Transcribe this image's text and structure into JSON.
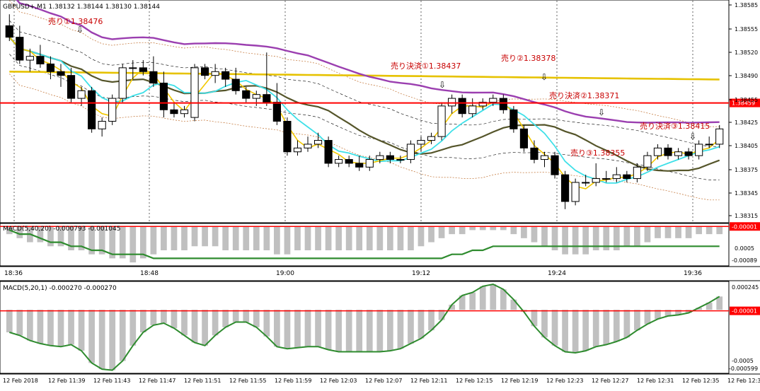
{
  "main_chart": {
    "header": "GBPUSD+,M1  1.38132 1.38144 1.38130 1.38144",
    "price_axis": [
      "1.38585",
      "1.38555",
      "1.38520",
      "1.38490",
      "1.38455",
      "1.38425",
      "1.38405",
      "1.38375",
      "1.38345",
      "1.38315"
    ],
    "current_price_label": "1.38459",
    "annotations": [
      {
        "text": "売り①1.38476",
        "color": "#c80000"
      },
      {
        "text": "売り決済①1.38437",
        "color": "#c80000"
      },
      {
        "text": "売り②1.38378",
        "color": "#c80000"
      },
      {
        "text": "売り決済②1.38371",
        "color": "#c80000"
      },
      {
        "text": "売り③1.38355",
        "color": "#c80000"
      },
      {
        "text": "売り決済③1.38415",
        "color": "#c80000"
      }
    ],
    "arrow_glyph": "⇩"
  },
  "macd1": {
    "header": "MACD(5,40,20) -0.000793 -0.001045",
    "axis": [
      "-0.00001",
      "0.0005",
      "-0.00089"
    ]
  },
  "time_axis_1": [
    "18:36",
    "18:48",
    "19:00",
    "19:12",
    "19:24",
    "19:36"
  ],
  "macd2": {
    "header": "MACD(5,20,1) -0.000270 -0.000270",
    "axis": [
      "0.000245",
      "-0.00001",
      "-0.0005",
      "-0.000599"
    ]
  },
  "time_axis_2": [
    "12 Feb 2018",
    "12 Feb 11:39",
    "12 Feb 11:43",
    "12 Feb 11:47",
    "12 Feb 11:51",
    "12 Feb 11:55",
    "12 Feb 11:59",
    "12 Feb 12:03",
    "12 Feb 12:07",
    "12 Feb 12:11",
    "12 Feb 12:15",
    "12 Feb 12:19",
    "12 Feb 12:23",
    "12 Feb 12:27",
    "12 Feb 12:31",
    "12 Feb 12:35",
    "12 Feb 12:3"
  ],
  "colors": {
    "bull": "#ffffff",
    "bear": "#000000",
    "ma_yellow": "#f2c800",
    "ma_purple": "#9b3fb0",
    "ma_olive": "#55552a",
    "ma_cyan": "#3fe0e8",
    "ma_gold": "#e6c200",
    "hline": "#ff0000",
    "macd_bar": "#c0c0c0",
    "macd_line": "#2e8b2e",
    "envelope": "#c07030"
  },
  "chart_data": [
    {
      "type": "candlestick",
      "title": "GBPUSD+,M1",
      "ohlc_approx": [
        [
          1.3856,
          1.38575,
          1.3854,
          1.38545
        ],
        [
          1.38545,
          1.3856,
          1.3851,
          1.38515
        ],
        [
          1.38515,
          1.3853,
          1.385,
          1.3852
        ],
        [
          1.3852,
          1.38535,
          1.38505,
          1.3851
        ],
        [
          1.3851,
          1.3852,
          1.3849,
          1.385
        ],
        [
          1.385,
          1.3851,
          1.3848,
          1.38495
        ],
        [
          1.38495,
          1.38505,
          1.3846,
          1.38465
        ],
        [
          1.38465,
          1.3848,
          1.38455,
          1.38475
        ],
        [
          1.38475,
          1.3848,
          1.3842,
          1.38425
        ],
        [
          1.38425,
          1.3844,
          1.38415,
          1.38435
        ],
        [
          1.38435,
          1.3847,
          1.3843,
          1.38465
        ],
        [
          1.38465,
          1.3851,
          1.3846,
          1.38505
        ],
        [
          1.38505,
          1.38515,
          1.3849,
          1.38505
        ],
        [
          1.38505,
          1.38515,
          1.38495,
          1.385
        ],
        [
          1.385,
          1.3852,
          1.3848,
          1.38485
        ],
        [
          1.38485,
          1.385,
          1.3844,
          1.3845
        ],
        [
          1.3845,
          1.3846,
          1.3844,
          1.38445
        ],
        [
          1.38445,
          1.38455,
          1.3844,
          1.3845
        ],
        [
          1.3844,
          1.3851,
          1.38435,
          1.38505
        ],
        [
          1.38505,
          1.3851,
          1.3849,
          1.38495
        ],
        [
          1.38495,
          1.3851,
          1.38485,
          1.385
        ],
        [
          1.385,
          1.38505,
          1.3848,
          1.3849
        ],
        [
          1.3849,
          1.38505,
          1.3847,
          1.38475
        ],
        [
          1.38475,
          1.3848,
          1.3846,
          1.38465
        ],
        [
          1.38465,
          1.38475,
          1.38455,
          1.3847
        ],
        [
          1.3847,
          1.38525,
          1.38455,
          1.3846
        ],
        [
          1.3846,
          1.38485,
          1.3843,
          1.38435
        ],
        [
          1.38435,
          1.3844,
          1.3839,
          1.38395
        ],
        [
          1.38395,
          1.3841,
          1.3839,
          1.384
        ],
        [
          1.384,
          1.38415,
          1.38395,
          1.38405
        ],
        [
          1.38405,
          1.3842,
          1.384,
          1.3841
        ],
        [
          1.3841,
          1.38415,
          1.38375,
          1.3838
        ],
        [
          1.3838,
          1.3839,
          1.38375,
          1.38385
        ],
        [
          1.38385,
          1.3839,
          1.38375,
          1.3838
        ],
        [
          1.3838,
          1.3839,
          1.3837,
          1.38375
        ],
        [
          1.38375,
          1.3839,
          1.3837,
          1.38385
        ],
        [
          1.38385,
          1.38395,
          1.3838,
          1.3839
        ],
        [
          1.3839,
          1.38395,
          1.3838,
          1.38385
        ],
        [
          1.38385,
          1.3839,
          1.3838,
          1.38385
        ],
        [
          1.38385,
          1.3841,
          1.3838,
          1.38405
        ],
        [
          1.38405,
          1.38415,
          1.38395,
          1.3841
        ],
        [
          1.3841,
          1.3842,
          1.38405,
          1.38415
        ],
        [
          1.38415,
          1.3846,
          1.3841,
          1.38455
        ],
        [
          1.38455,
          1.3847,
          1.38445,
          1.38465
        ],
        [
          1.38465,
          1.3847,
          1.3844,
          1.38445
        ],
        [
          1.38445,
          1.38465,
          1.3844,
          1.38455
        ],
        [
          1.38455,
          1.38465,
          1.3845,
          1.3846
        ],
        [
          1.3846,
          1.3847,
          1.38455,
          1.38465
        ],
        [
          1.38465,
          1.3847,
          1.38445,
          1.3845
        ],
        [
          1.3845,
          1.38455,
          1.3842,
          1.38425
        ],
        [
          1.38425,
          1.3843,
          1.38395,
          1.384
        ],
        [
          1.384,
          1.3841,
          1.3838,
          1.38385
        ],
        [
          1.38385,
          1.38395,
          1.38375,
          1.3839
        ],
        [
          1.3839,
          1.38395,
          1.3836,
          1.38365
        ],
        [
          1.38365,
          1.3837,
          1.3832,
          1.3833
        ],
        [
          1.3833,
          1.3836,
          1.38325,
          1.38355
        ],
        [
          1.38355,
          1.38365,
          1.3835,
          1.38355
        ],
        [
          1.38355,
          1.3838,
          1.3835,
          1.3836
        ],
        [
          1.3836,
          1.3837,
          1.38355,
          1.3836
        ],
        [
          1.3836,
          1.38375,
          1.38355,
          1.38365
        ],
        [
          1.38365,
          1.3837,
          1.38355,
          1.3836
        ],
        [
          1.3836,
          1.3838,
          1.38355,
          1.38375
        ],
        [
          1.38375,
          1.38395,
          1.3837,
          1.3839
        ],
        [
          1.3839,
          1.38405,
          1.38385,
          1.384
        ],
        [
          1.384,
          1.38405,
          1.38385,
          1.3839
        ],
        [
          1.3839,
          1.384,
          1.38385,
          1.38395
        ],
        [
          1.38395,
          1.384,
          1.38385,
          1.3839
        ],
        [
          1.3839,
          1.3841,
          1.38385,
          1.38405
        ],
        [
          1.38405,
          1.38415,
          1.384,
          1.38405
        ],
        [
          1.38405,
          1.3843,
          1.384,
          1.38425
        ]
      ],
      "hline": 1.38459,
      "ylim": [
        1.38305,
        1.3859
      ]
    },
    {
      "type": "bar+line",
      "title": "MACD(5,40,20)",
      "values": [
        -0.0002,
        -0.0003,
        -0.0004,
        -0.0004,
        -0.0005,
        -0.0005,
        -0.0006,
        -0.0006,
        -0.0007,
        -0.0007,
        -0.0008,
        -0.0008,
        -0.0009,
        -0.0008,
        -0.0007,
        -0.0006,
        -0.0006,
        -0.0006,
        -0.0005,
        -0.0005,
        -0.0005,
        -0.0006,
        -0.0006,
        -0.0006,
        -0.0006,
        -0.0006,
        -0.0007,
        -0.0007,
        -0.0006,
        -0.0006,
        -0.0006,
        -0.0006,
        -0.0006,
        -0.0006,
        -0.0006,
        -0.0006,
        -0.0006,
        -0.0006,
        -0.0006,
        -0.0006,
        -0.0005,
        -0.0004,
        -0.0003,
        -0.0002,
        -0.0002,
        -0.0001,
        -0.0001,
        -0.0001,
        -0.0001,
        -0.0002,
        -0.0003,
        -0.0004,
        -0.0005,
        -0.0006,
        -0.0007,
        -0.0007,
        -0.0007,
        -0.0006,
        -0.0006,
        -0.0006,
        -0.0005,
        -0.0005,
        -0.0004,
        -0.0003,
        -0.0003,
        -0.0003,
        -0.0003,
        -0.0002,
        -0.0002,
        -0.0002
      ],
      "signal": [
        -0.0001,
        -0.0002,
        -0.0002,
        -0.0003,
        -0.0004,
        -0.0004,
        -0.0005,
        -0.0005,
        -0.0006,
        -0.0006,
        -0.0007,
        -0.0007,
        -0.0007,
        -0.0007,
        -0.0008,
        -0.0008,
        -0.0008,
        -0.0008,
        -0.0008,
        -0.0008,
        -0.0008,
        -0.0008,
        -0.0008,
        -0.0008,
        -0.0008,
        -0.0008,
        -0.0008,
        -0.0008,
        -0.0008,
        -0.0008,
        -0.0008,
        -0.0008,
        -0.0008,
        -0.0008,
        -0.0008,
        -0.0008,
        -0.0008,
        -0.0008,
        -0.0008,
        -0.0008,
        -0.0008,
        -0.0008,
        -0.0008,
        -0.0007,
        -0.0007,
        -0.0006,
        -0.0006,
        -0.0005,
        -0.0005,
        -0.0005,
        -0.0005,
        -0.0005,
        -0.0005,
        -0.0005,
        -0.0005,
        -0.0005,
        -0.0005,
        -0.0005,
        -0.0005,
        -0.0005,
        -0.0005,
        -0.0005,
        -0.0005,
        -0.0005,
        -0.0005,
        -0.0005,
        -0.0005,
        -0.0005,
        -0.0005,
        -0.0005
      ],
      "ylim": [
        -0.00095,
        3e-05
      ],
      "hline": -1e-05
    },
    {
      "type": "bar+line",
      "title": "MACD(5,20,1)",
      "values": [
        -0.00022,
        -0.00025,
        -0.0003,
        -0.00033,
        -0.00035,
        -0.00036,
        -0.00034,
        -0.0004,
        -0.00052,
        -0.00058,
        -0.00059,
        -0.0005,
        -0.00035,
        -0.00022,
        -0.00015,
        -0.00013,
        -0.00018,
        -0.00025,
        -0.00032,
        -0.00035,
        -0.00025,
        -0.00017,
        -0.00012,
        -0.00012,
        -0.00017,
        -0.00026,
        -0.00036,
        -0.00038,
        -0.00037,
        -0.00036,
        -0.00036,
        -0.00039,
        -0.00041,
        -0.00041,
        -0.00041,
        -0.00041,
        -0.00041,
        -0.0004,
        -0.00038,
        -0.00033,
        -0.00028,
        -0.0002,
        -0.0001,
        5e-05,
        0.00014,
        0.00017,
        0.00023,
        0.00025,
        0.0002,
        0.0001,
        -2e-05,
        -0.00016,
        -0.00027,
        -0.00035,
        -0.00041,
        -0.00042,
        -0.0004,
        -0.00036,
        -0.00034,
        -0.00031,
        -0.00027,
        -0.0002,
        -0.00014,
        -9e-05,
        -6e-05,
        -5e-05,
        -3e-05,
        2e-05,
        7e-05,
        0.00013
      ],
      "ylim": [
        -0.0006,
        0.00025
      ],
      "hline": -1e-05
    }
  ]
}
